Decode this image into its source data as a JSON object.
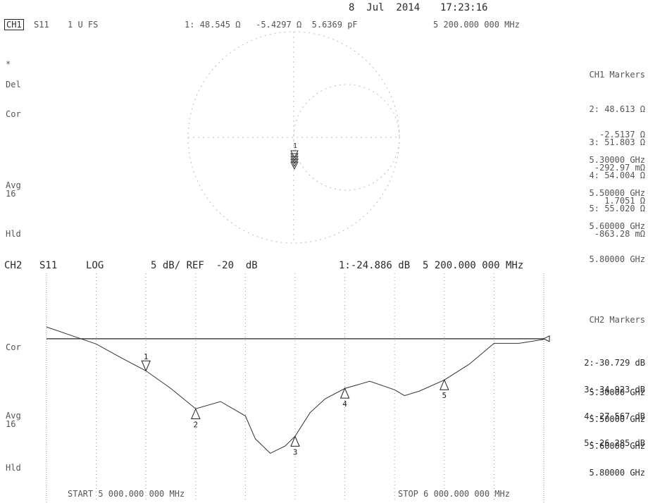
{
  "header": {
    "date": "8  Jul  2014",
    "time": "17:23:16"
  },
  "ch1": {
    "label": "CH1",
    "param": "S11",
    "format": "1 U FS",
    "marker_readout": "1: 48.545 Ω   -5.4297 Ω  5.6369 pF",
    "marker_freq": "5 200.000 000 MHz",
    "annotations": [
      "*",
      "Del",
      "Cor",
      "Avg",
      "16",
      "Hld"
    ],
    "markers_title": "CH1 Markers",
    "markers": [
      {
        "lines": [
          "2: 48.613 Ω",
          "-2.5137 Ω",
          "5.30000 GHz"
        ]
      },
      {
        "lines": [
          "3: 51.803 Ω",
          "-292.97 mΩ",
          "5.50000 GHz"
        ]
      },
      {
        "lines": [
          "4: 54.004 Ω",
          "1.7051 Ω",
          "5.60000 GHz"
        ]
      },
      {
        "lines": [
          "5: 55.020 Ω",
          "-863.28 mΩ",
          "5.80000 GHz"
        ]
      }
    ]
  },
  "ch2": {
    "label": "CH2",
    "param": "S11",
    "format": "LOG",
    "scale": "5 dB/ REF  -20  dB",
    "marker_readout": "1:-24.886 dB",
    "marker_freq": "5 200.000 000 MHz",
    "annotations": [
      "Cor",
      "Avg",
      "16",
      "Hld"
    ],
    "markers_title": "CH2 Markers",
    "markers": [
      {
        "lines": [
          "2:-30.729 dB",
          "5.30000 GHz"
        ]
      },
      {
        "lines": [
          "3:-34.923 dB",
          "5.50000 GHz"
        ]
      },
      {
        "lines": [
          "4:-27.567 dB",
          "5.60000 GHz"
        ]
      },
      {
        "lines": [
          "5:-26.285 dB",
          "5.80000 GHz"
        ]
      }
    ],
    "start": "START 5 000.000 000 MHz",
    "stop": "STOP 6 000.000 000 MHz"
  },
  "chart_data": {
    "type": "line",
    "xlabel": "",
    "ylabel": "",
    "xlim": [
      5000,
      6000
    ],
    "ylim": [
      -45,
      -10
    ],
    "ref_level": -20,
    "grid": true,
    "series": [
      {
        "x": [
          5000,
          5050,
          5100,
          5150,
          5200,
          5250,
          5300,
          5350,
          5400,
          5420,
          5450,
          5480,
          5500,
          5530,
          5560,
          5600,
          5650,
          5700,
          5720,
          5750,
          5800,
          5850,
          5900,
          5950,
          6000
        ],
        "values": [
          -18.2,
          -19.5,
          -20.8,
          -22.9,
          -24.9,
          -27.6,
          -30.7,
          -29.6,
          -31.8,
          -35.3,
          -37.5,
          -36.4,
          -34.9,
          -31.3,
          -29.2,
          -27.6,
          -26.5,
          -27.8,
          -28.7,
          -28.0,
          -26.3,
          -23.9,
          -20.7,
          -20.7,
          -20.1
        ]
      }
    ],
    "markers": [
      {
        "label": "1",
        "x": 5200,
        "y": -24.886
      },
      {
        "label": "2",
        "x": 5300,
        "y": -30.729
      },
      {
        "label": "3",
        "x": 5500,
        "y": -34.923
      },
      {
        "label": "4",
        "x": 5600,
        "y": -27.567
      },
      {
        "label": "5",
        "x": 5800,
        "y": -26.285
      }
    ]
  }
}
